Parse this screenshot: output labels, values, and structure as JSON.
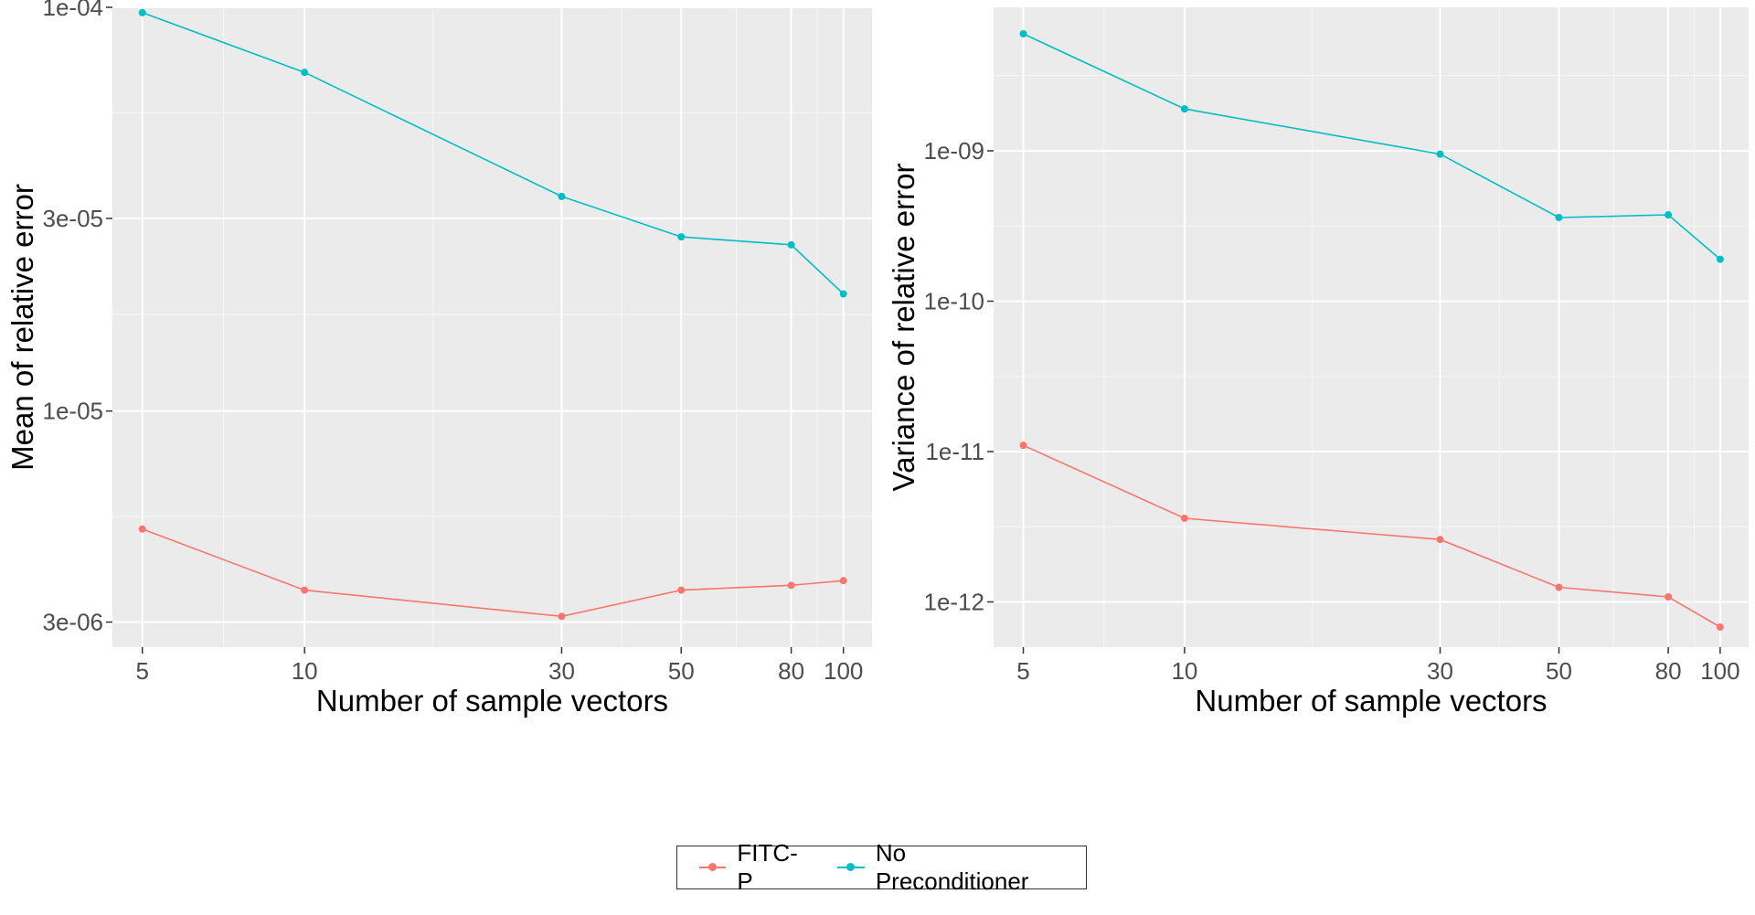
{
  "colors": {
    "panel_bg": "#ebebeb",
    "grid_major": "#ffffff",
    "grid_minor": "#f5f5f5",
    "tick_text": "#4d4d4d",
    "fitc": "#f8766d",
    "nopre": "#00bfc4"
  },
  "legend": {
    "items": [
      {
        "label": "FITC-P",
        "color": "#f8766d"
      },
      {
        "label": "No Preconditioner",
        "color": "#00bfc4"
      }
    ]
  },
  "chart_data": [
    {
      "type": "line",
      "title": "",
      "xlabel": "Number of sample vectors",
      "ylabel": "Mean of relative error",
      "x_scale": "log",
      "y_scale": "log",
      "x": [
        5,
        10,
        30,
        50,
        80,
        100
      ],
      "x_ticks": [
        5,
        10,
        30,
        50,
        80,
        100
      ],
      "xlim": [
        4.4,
        113
      ],
      "y_ticks": [
        3e-06,
        1e-05,
        3e-05,
        0.0001
      ],
      "y_tick_labels": [
        "3e-06",
        "1e-05",
        "3e-05",
        "1e-04"
      ],
      "ylim": [
        2.6e-06,
        0.0001
      ],
      "grid": true,
      "legend_position": "bottom",
      "series": [
        {
          "name": "FITC-P",
          "color": "#f8766d",
          "values": [
            5.1e-06,
            3.6e-06,
            3.1e-06,
            3.6e-06,
            3.7e-06,
            3.8e-06
          ]
        },
        {
          "name": "No Preconditioner",
          "color": "#00bfc4",
          "values": [
            9.7e-05,
            6.9e-05,
            3.4e-05,
            2.7e-05,
            2.58e-05,
            1.95e-05
          ]
        }
      ]
    },
    {
      "type": "line",
      "title": "",
      "xlabel": "Number of sample vectors",
      "ylabel": "Variance of relative error",
      "x_scale": "log",
      "y_scale": "log",
      "x": [
        5,
        10,
        30,
        50,
        80,
        100
      ],
      "x_ticks": [
        5,
        10,
        30,
        50,
        80,
        100
      ],
      "xlim": [
        4.4,
        113
      ],
      "y_ticks": [
        1e-12,
        1e-11,
        1e-10,
        1e-09
      ],
      "y_tick_labels": [
        "1e-12",
        "1e-11",
        "1e-10",
        "1e-09"
      ],
      "ylim": [
        5e-13,
        9e-09
      ],
      "grid": true,
      "legend_position": "bottom",
      "series": [
        {
          "name": "FITC-P",
          "color": "#f8766d",
          "values": [
            1.1e-11,
            3.6e-12,
            2.6e-12,
            1.25e-12,
            1.08e-12,
            6.8e-13
          ]
        },
        {
          "name": "No Preconditioner",
          "color": "#00bfc4",
          "values": [
            6e-09,
            1.9e-09,
            9.5e-10,
            3.6e-10,
            3.75e-10,
            1.9e-10
          ]
        }
      ]
    }
  ]
}
